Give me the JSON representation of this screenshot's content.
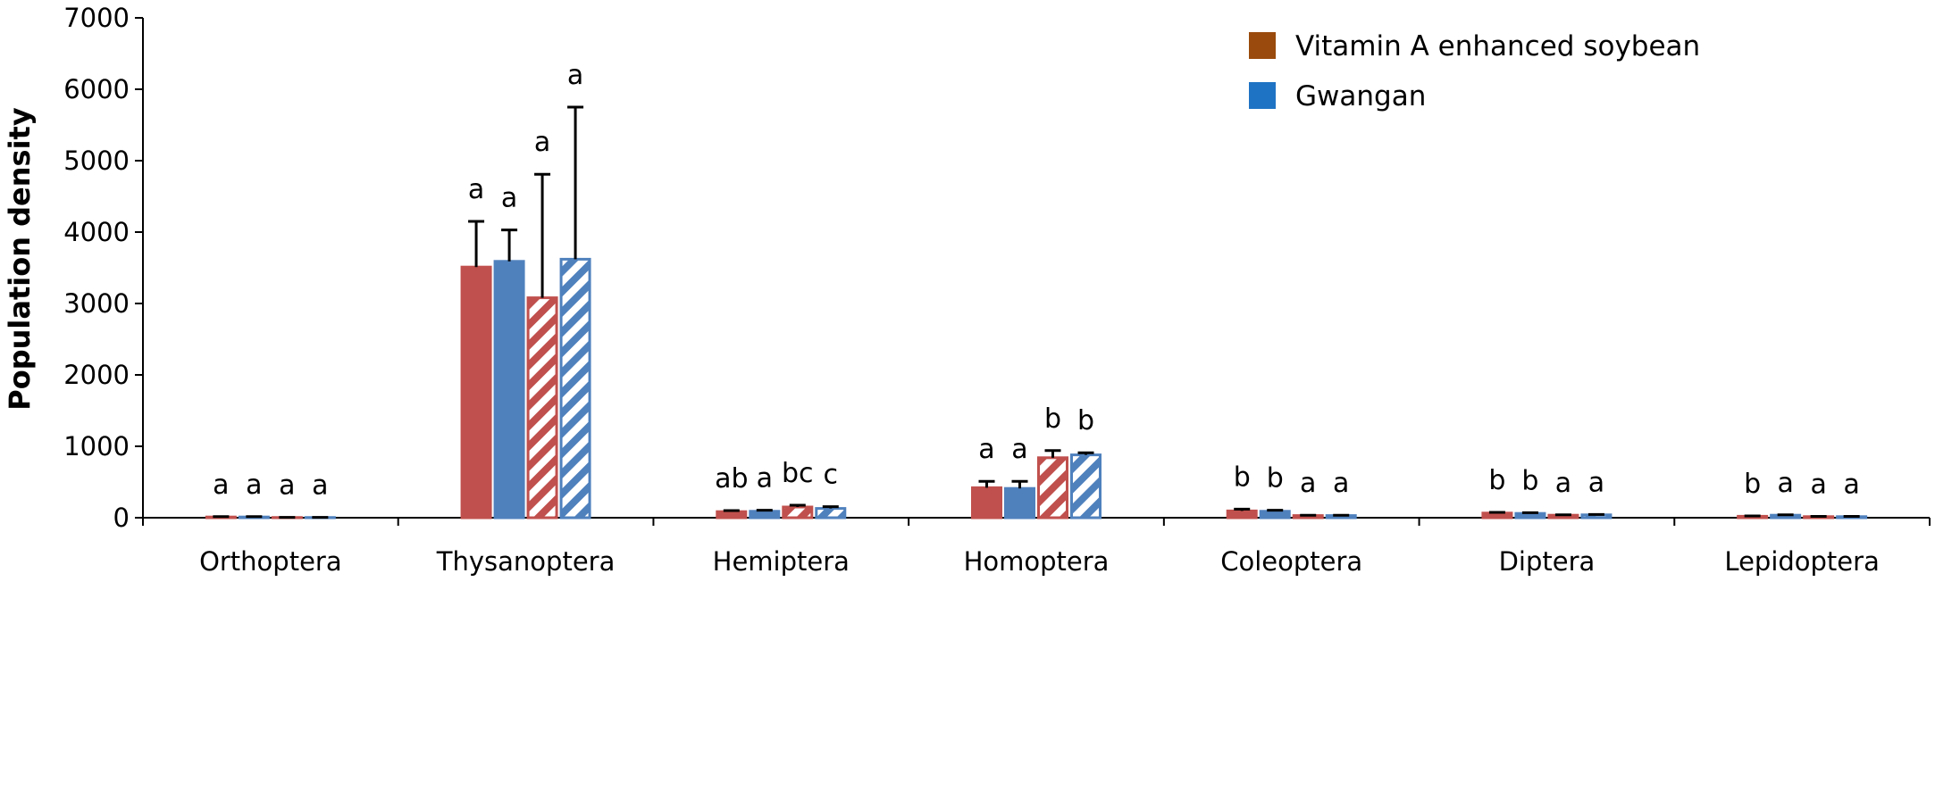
{
  "chart_data": {
    "type": "bar",
    "title": "",
    "xlabel": "",
    "ylabel": "Population density",
    "ylim": [
      0,
      7000
    ],
    "yticks": [
      0,
      1000,
      2000,
      3000,
      4000,
      5000,
      6000,
      7000
    ],
    "grid": false,
    "legend_position": "top-right",
    "categories": [
      "Orthoptera",
      "Thysanoptera",
      "Hemiptera",
      "Homoptera",
      "Coleoptera",
      "Diptera",
      "Lepidoptera"
    ],
    "legend": [
      {
        "label": "Vitamin A enhanced soybean",
        "color": "#9a4a0c"
      },
      {
        "label": "Gwangan",
        "color": "#1f73c4"
      }
    ],
    "series": [
      {
        "color": "#c0504d",
        "pattern": "solid",
        "values": [
          10,
          3510,
          85,
          420,
          95,
          65,
          20
        ],
        "errors": [
          5,
          640,
          15,
          90,
          25,
          10,
          5
        ],
        "letters": [
          "a",
          "a",
          "ab",
          "a",
          "b",
          "b",
          "b"
        ]
      },
      {
        "color": "#4f81bd",
        "pattern": "solid",
        "values": [
          10,
          3590,
          90,
          410,
          90,
          60,
          35
        ],
        "errors": [
          5,
          440,
          15,
          100,
          15,
          10,
          5
        ],
        "letters": [
          "a",
          "a",
          "a",
          "a",
          "b",
          "b",
          "a"
        ]
      },
      {
        "color": "#c0504d",
        "pattern": "hatched",
        "values": [
          3,
          3080,
          150,
          840,
          30,
          35,
          15
        ],
        "errors": [
          2,
          1730,
          25,
          100,
          5,
          5,
          3
        ],
        "letters": [
          "a",
          "a",
          "bc",
          "b",
          "a",
          "a",
          "a"
        ]
      },
      {
        "color": "#4f81bd",
        "pattern": "hatched",
        "values": [
          3,
          3620,
          130,
          880,
          30,
          40,
          15
        ],
        "errors": [
          2,
          2130,
          25,
          30,
          5,
          5,
          3
        ],
        "letters": [
          "a",
          "a",
          "c",
          "b",
          "a",
          "a",
          "a"
        ]
      }
    ]
  }
}
